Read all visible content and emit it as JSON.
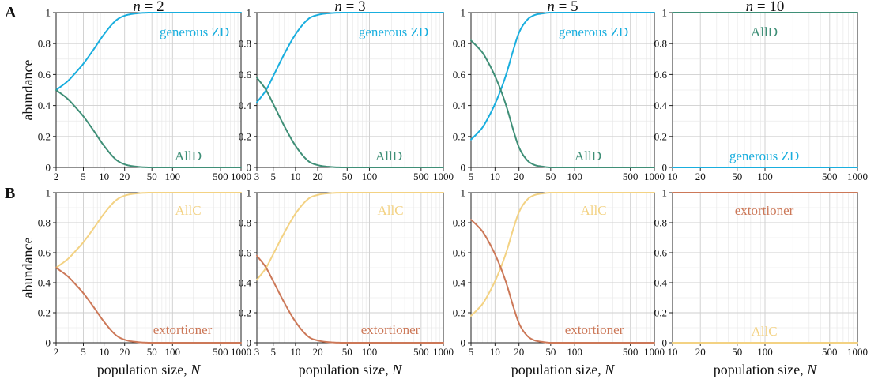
{
  "figure": {
    "row_labels": [
      "A",
      "B"
    ],
    "column_titles": [
      {
        "var": "n",
        "eq": " = 2"
      },
      {
        "var": "n",
        "eq": " = 3"
      },
      {
        "var": "n",
        "eq": " = 5"
      },
      {
        "var": "n",
        "eq": " = 10"
      }
    ],
    "ylabel": "abundance",
    "xlabel": {
      "prefix": "population size, ",
      "var": "N"
    },
    "colors": {
      "generous_zd": "#19aede",
      "alld": "#3f8f77",
      "allc": "#f3d283",
      "extortioner": "#cc7858",
      "grid": "#cfcfcf",
      "axis": "#222222"
    }
  },
  "chart_data": [
    {
      "type": "line",
      "row": "A",
      "n": 2,
      "xscale": "log",
      "xlim": [
        2,
        1000
      ],
      "ylim": [
        0,
        1
      ],
      "xticks": [
        2,
        5,
        10,
        20,
        50,
        100,
        500,
        1000
      ],
      "xtick_labels": [
        "2",
        "5",
        "10",
        "20",
        "50",
        "100",
        "500",
        "1000"
      ],
      "yticks": [
        0,
        0.2,
        0.4,
        0.6,
        0.8,
        1
      ],
      "ytick_labels": [
        "0",
        "0.2",
        "0.4",
        "0.6",
        "0.8",
        "1"
      ],
      "series": [
        {
          "name": "generous ZD",
          "color": "generous_zd",
          "x": [
            2,
            3,
            4,
            5,
            7,
            10,
            15,
            20,
            30,
            50,
            100,
            1000
          ],
          "y": [
            0.5,
            0.56,
            0.62,
            0.67,
            0.76,
            0.86,
            0.95,
            0.98,
            0.995,
            1.0,
            1.0,
            1.0
          ]
        },
        {
          "name": "AllD",
          "color": "alld",
          "x": [
            2,
            3,
            4,
            5,
            7,
            10,
            15,
            20,
            30,
            50,
            100,
            1000
          ],
          "y": [
            0.5,
            0.44,
            0.38,
            0.33,
            0.24,
            0.14,
            0.05,
            0.02,
            0.005,
            0.0,
            0.0,
            0.0
          ]
        }
      ]
    },
    {
      "type": "line",
      "row": "A",
      "n": 3,
      "xscale": "log",
      "xlim": [
        3,
        1000
      ],
      "ylim": [
        0,
        1
      ],
      "xticks": [
        3,
        5,
        10,
        20,
        50,
        100,
        500,
        1000
      ],
      "xtick_labels": [
        "3",
        "5",
        "10",
        "20",
        "50",
        "100",
        "500",
        "1000"
      ],
      "yticks": [
        0,
        0.2,
        0.4,
        0.6,
        0.8,
        1
      ],
      "ytick_labels": [
        "0",
        "0.2",
        "0.4",
        "0.6",
        "0.8",
        "1"
      ],
      "series": [
        {
          "name": "generous ZD",
          "color": "generous_zd",
          "x": [
            3,
            4,
            5,
            7,
            10,
            15,
            20,
            30,
            50,
            100,
            1000
          ],
          "y": [
            0.42,
            0.5,
            0.59,
            0.73,
            0.86,
            0.96,
            0.985,
            0.997,
            1.0,
            1.0,
            1.0
          ]
        },
        {
          "name": "AllD",
          "color": "alld",
          "x": [
            3,
            4,
            5,
            7,
            10,
            15,
            20,
            30,
            50,
            100,
            1000
          ],
          "y": [
            0.58,
            0.5,
            0.41,
            0.27,
            0.14,
            0.04,
            0.015,
            0.003,
            0.0,
            0.0,
            0.0
          ]
        }
      ]
    },
    {
      "type": "line",
      "row": "A",
      "n": 5,
      "xscale": "log",
      "xlim": [
        5,
        1000
      ],
      "ylim": [
        0,
        1
      ],
      "xticks": [
        5,
        10,
        20,
        50,
        100,
        500,
        1000
      ],
      "xtick_labels": [
        "5",
        "10",
        "20",
        "50",
        "100",
        "500",
        "1000"
      ],
      "yticks": [
        0,
        0.2,
        0.4,
        0.6,
        0.8,
        1
      ],
      "ytick_labels": [
        "0",
        "0.2",
        "0.4",
        "0.6",
        "0.8",
        "1"
      ],
      "series": [
        {
          "name": "generous ZD",
          "color": "generous_zd",
          "x": [
            5,
            6,
            7,
            8,
            10,
            12,
            14,
            17,
            20,
            25,
            30,
            40,
            50,
            100,
            1000
          ],
          "y": [
            0.18,
            0.22,
            0.26,
            0.31,
            0.41,
            0.51,
            0.61,
            0.76,
            0.87,
            0.95,
            0.98,
            0.995,
            1.0,
            1.0,
            1.0
          ]
        },
        {
          "name": "AllD",
          "color": "alld",
          "x": [
            5,
            6,
            7,
            8,
            10,
            12,
            14,
            17,
            20,
            25,
            30,
            40,
            50,
            100,
            1000
          ],
          "y": [
            0.82,
            0.78,
            0.74,
            0.69,
            0.59,
            0.49,
            0.39,
            0.24,
            0.13,
            0.05,
            0.02,
            0.005,
            0.0,
            0.0,
            0.0
          ]
        }
      ]
    },
    {
      "type": "line",
      "row": "A",
      "n": 10,
      "xscale": "log",
      "xlim": [
        10,
        1000
      ],
      "ylim": [
        0,
        1
      ],
      "xticks": [
        10,
        20,
        50,
        100,
        500,
        1000
      ],
      "xtick_labels": [
        "10",
        "20",
        "50",
        "100",
        "500",
        "1000"
      ],
      "yticks": [
        0,
        0.2,
        0.4,
        0.6,
        0.8,
        1
      ],
      "ytick_labels": [
        "0",
        "0.2",
        "0.4",
        "0.6",
        "0.8",
        "1"
      ],
      "series": [
        {
          "name": "AllD",
          "color": "alld",
          "x": [
            10,
            1000
          ],
          "y": [
            1.0,
            1.0
          ]
        },
        {
          "name": "generous ZD",
          "color": "generous_zd",
          "x": [
            10,
            1000
          ],
          "y": [
            0.0,
            0.0
          ]
        }
      ]
    },
    {
      "type": "line",
      "row": "B",
      "n": 2,
      "xscale": "log",
      "xlim": [
        2,
        1000
      ],
      "ylim": [
        0,
        1
      ],
      "xticks": [
        2,
        5,
        10,
        20,
        50,
        100,
        500,
        1000
      ],
      "xtick_labels": [
        "2",
        "5",
        "10",
        "20",
        "50",
        "100",
        "500",
        "1000"
      ],
      "yticks": [
        0,
        0.2,
        0.4,
        0.6,
        0.8,
        1
      ],
      "ytick_labels": [
        "0",
        "0.2",
        "0.4",
        "0.6",
        "0.8",
        "1"
      ],
      "series": [
        {
          "name": "AllC",
          "color": "allc",
          "x": [
            2,
            3,
            4,
            5,
            7,
            10,
            15,
            20,
            30,
            50,
            100,
            1000
          ],
          "y": [
            0.5,
            0.56,
            0.62,
            0.67,
            0.76,
            0.86,
            0.95,
            0.98,
            0.995,
            1.0,
            1.0,
            1.0
          ]
        },
        {
          "name": "extortioner",
          "color": "extortioner",
          "x": [
            2,
            3,
            4,
            5,
            7,
            10,
            15,
            20,
            30,
            50,
            100,
            1000
          ],
          "y": [
            0.5,
            0.44,
            0.38,
            0.33,
            0.24,
            0.14,
            0.05,
            0.02,
            0.005,
            0.0,
            0.0,
            0.0
          ]
        }
      ]
    },
    {
      "type": "line",
      "row": "B",
      "n": 3,
      "xscale": "log",
      "xlim": [
        3,
        1000
      ],
      "ylim": [
        0,
        1
      ],
      "xticks": [
        3,
        5,
        10,
        20,
        50,
        100,
        500,
        1000
      ],
      "xtick_labels": [
        "3",
        "5",
        "10",
        "20",
        "50",
        "100",
        "500",
        "1000"
      ],
      "yticks": [
        0,
        0.2,
        0.4,
        0.6,
        0.8,
        1
      ],
      "ytick_labels": [
        "0",
        "0.2",
        "0.4",
        "0.6",
        "0.8",
        "1"
      ],
      "series": [
        {
          "name": "AllC",
          "color": "allc",
          "x": [
            3,
            4,
            5,
            7,
            10,
            15,
            20,
            30,
            50,
            100,
            1000
          ],
          "y": [
            0.42,
            0.5,
            0.59,
            0.73,
            0.86,
            0.96,
            0.985,
            0.997,
            1.0,
            1.0,
            1.0
          ]
        },
        {
          "name": "extortioner",
          "color": "extortioner",
          "x": [
            3,
            4,
            5,
            7,
            10,
            15,
            20,
            30,
            50,
            100,
            1000
          ],
          "y": [
            0.58,
            0.5,
            0.41,
            0.27,
            0.14,
            0.04,
            0.015,
            0.003,
            0.0,
            0.0,
            0.0
          ]
        }
      ]
    },
    {
      "type": "line",
      "row": "B",
      "n": 5,
      "xscale": "log",
      "xlim": [
        5,
        1000
      ],
      "ylim": [
        0,
        1
      ],
      "xticks": [
        5,
        10,
        20,
        50,
        100,
        500,
        1000
      ],
      "xtick_labels": [
        "5",
        "10",
        "20",
        "50",
        "100",
        "500",
        "1000"
      ],
      "yticks": [
        0,
        0.2,
        0.4,
        0.6,
        0.8,
        1
      ],
      "ytick_labels": [
        "0",
        "0.2",
        "0.4",
        "0.6",
        "0.8",
        "1"
      ],
      "series": [
        {
          "name": "AllC",
          "color": "allc",
          "x": [
            5,
            6,
            7,
            8,
            10,
            12,
            14,
            17,
            20,
            25,
            30,
            40,
            50,
            100,
            1000
          ],
          "y": [
            0.18,
            0.22,
            0.26,
            0.31,
            0.41,
            0.51,
            0.61,
            0.76,
            0.87,
            0.95,
            0.98,
            0.995,
            1.0,
            1.0,
            1.0
          ]
        },
        {
          "name": "extortioner",
          "color": "extortioner",
          "x": [
            5,
            6,
            7,
            8,
            10,
            12,
            14,
            17,
            20,
            25,
            30,
            40,
            50,
            100,
            1000
          ],
          "y": [
            0.82,
            0.78,
            0.74,
            0.69,
            0.59,
            0.49,
            0.39,
            0.24,
            0.13,
            0.05,
            0.02,
            0.005,
            0.0,
            0.0,
            0.0
          ]
        }
      ]
    },
    {
      "type": "line",
      "row": "B",
      "n": 10,
      "xscale": "log",
      "xlim": [
        10,
        1000
      ],
      "ylim": [
        0,
        1
      ],
      "xticks": [
        10,
        20,
        50,
        100,
        500,
        1000
      ],
      "xtick_labels": [
        "10",
        "20",
        "50",
        "100",
        "500",
        "1000"
      ],
      "yticks": [
        0,
        0.2,
        0.4,
        0.6,
        0.8,
        1
      ],
      "ytick_labels": [
        "0",
        "0.2",
        "0.4",
        "0.6",
        "0.8",
        "1"
      ],
      "series": [
        {
          "name": "extortioner",
          "color": "extortioner",
          "x": [
            10,
            1000
          ],
          "y": [
            1.0,
            1.0
          ]
        },
        {
          "name": "AllC",
          "color": "allc",
          "x": [
            10,
            1000
          ],
          "y": [
            0.0,
            0.0
          ]
        }
      ]
    }
  ]
}
